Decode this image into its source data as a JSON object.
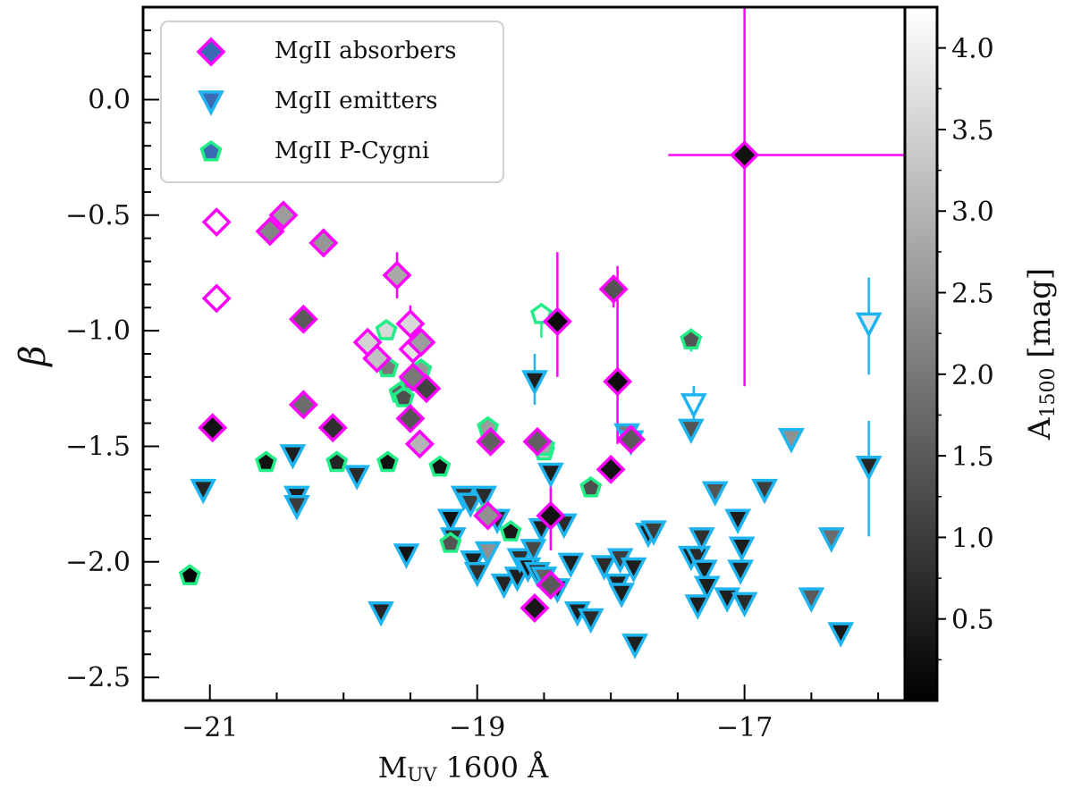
{
  "chart_data": {
    "type": "scatter",
    "title": "",
    "xlabel": "MUV 1600 Å",
    "xlabel_main": "M",
    "xlabel_sub": "UV",
    "xlabel_rest": " 1600 Å",
    "ylabel": "β",
    "xlim": [
      -21.5,
      -15.8
    ],
    "ylim": [
      -2.6,
      0.4
    ],
    "xticks": [
      -21,
      -19,
      -17
    ],
    "xtick_labels": [
      "−21",
      "−19",
      "−17"
    ],
    "yticks": [
      -2.5,
      -2.0,
      -1.5,
      -1.0,
      -0.5,
      0.0
    ],
    "ytick_labels": [
      "−2.5",
      "−2.0",
      "−1.5",
      "−1.0",
      "−0.5",
      "0.0"
    ],
    "colorbar": {
      "label": "A1500 [mag]",
      "label_main": "A",
      "label_sub": "1500",
      "label_rest": " [mag]",
      "range": [
        0.0,
        4.25
      ],
      "ticks": [
        0.5,
        1.0,
        1.5,
        2.0,
        2.5,
        3.0,
        3.5,
        4.0
      ],
      "tick_labels": [
        "0.5",
        "1.0",
        "1.5",
        "2.0",
        "2.5",
        "3.0",
        "3.5",
        "4.0"
      ],
      "colormap": "gray"
    },
    "legend": {
      "position": "top-left",
      "entries": [
        {
          "label": "MgII absorbers",
          "marker": "diamond",
          "edge": "#ff00ff",
          "face": "#3a6ab3"
        },
        {
          "label": "MgII emitters",
          "marker": "triangle-down",
          "edge": "#1eb4f0",
          "face": "#3a6ab3"
        },
        {
          "label": "MgII P-Cygni",
          "marker": "pentagon",
          "edge": "#22ee88",
          "face": "#3a6ab3"
        }
      ]
    },
    "series": [
      {
        "name": "MgII absorbers",
        "marker": "diamond",
        "edge_color": "#ff00ff",
        "points": [
          {
            "x": -20.95,
            "y": -0.53,
            "a": 4.25
          },
          {
            "x": -20.95,
            "y": -0.86,
            "a": 4.25
          },
          {
            "x": -20.98,
            "y": -1.42,
            "a": 0.3
          },
          {
            "x": -20.55,
            "y": -0.57,
            "a": 2.2
          },
          {
            "x": -20.45,
            "y": -0.5,
            "a": 2.6
          },
          {
            "x": -20.15,
            "y": -0.62,
            "a": 2.5
          },
          {
            "x": -20.3,
            "y": -0.95,
            "a": 1.5
          },
          {
            "x": -20.3,
            "y": -1.32,
            "a": 1.8
          },
          {
            "x": -20.08,
            "y": -1.42,
            "a": 0.8
          },
          {
            "x": -19.82,
            "y": -1.05,
            "a": 3.5
          },
          {
            "x": -19.75,
            "y": -1.12,
            "a": 3.2
          },
          {
            "x": -19.6,
            "y": -0.76,
            "a": 2.8,
            "yerr": [
              0.1,
              0.1
            ]
          },
          {
            "x": -19.5,
            "y": -0.97,
            "a": 3.6,
            "yerr": [
              0.05,
              0.08
            ]
          },
          {
            "x": -19.48,
            "y": -1.08,
            "a": 3.8
          },
          {
            "x": -19.42,
            "y": -1.05,
            "a": 2.6
          },
          {
            "x": -19.48,
            "y": -1.2,
            "a": 2.0
          },
          {
            "x": -19.5,
            "y": -1.38,
            "a": 1.4
          },
          {
            "x": -19.38,
            "y": -1.25,
            "a": 1.1
          },
          {
            "x": -19.43,
            "y": -1.49,
            "a": 3.0
          },
          {
            "x": -18.55,
            "y": -1.48,
            "a": 1.6
          },
          {
            "x": -18.9,
            "y": -1.48,
            "a": 1.6
          },
          {
            "x": -18.92,
            "y": -1.8,
            "a": 2.4
          },
          {
            "x": -18.57,
            "y": -2.2,
            "a": 0.4
          },
          {
            "x": -18.45,
            "y": -2.1,
            "a": 1.5
          },
          {
            "x": -18.45,
            "y": -1.8,
            "a": 0.3,
            "yerr": [
              0.15,
              0.17
            ]
          },
          {
            "x": -18.4,
            "y": -0.96,
            "a": 0.2,
            "yerr": [
              0.24,
              0.3
            ]
          },
          {
            "x": -17.98,
            "y": -0.82,
            "a": 1.4,
            "yerr": [
              0.08,
              0.06
            ]
          },
          {
            "x": -17.95,
            "y": -1.22,
            "a": 0.2,
            "yerr": [
              0.27,
              0.5
            ]
          },
          {
            "x": -18.0,
            "y": -1.6,
            "a": 0.3
          },
          {
            "x": -17.85,
            "y": -1.47,
            "a": 1.5
          },
          {
            "x": -17.0,
            "y": -0.24,
            "a": 0.3,
            "xerr": [
              0.57,
              1.3
            ],
            "yerr": [
              1.0,
              0.64
            ]
          }
        ]
      },
      {
        "name": "MgII emitters",
        "marker": "triangle-down",
        "edge_color": "#1eb4f0",
        "points": [
          {
            "x": -21.05,
            "y": -1.69,
            "a": 0.6
          },
          {
            "x": -20.38,
            "y": -1.54,
            "a": 0.5
          },
          {
            "x": -20.35,
            "y": -1.72,
            "a": 0.5
          },
          {
            "x": -20.35,
            "y": -1.76,
            "a": 1.0
          },
          {
            "x": -19.9,
            "y": -1.63,
            "a": 0.7
          },
          {
            "x": -19.72,
            "y": -2.22,
            "a": 0.6
          },
          {
            "x": -19.53,
            "y": -1.97,
            "a": 0.3
          },
          {
            "x": -19.2,
            "y": -1.82,
            "a": 0.3
          },
          {
            "x": -19.18,
            "y": -1.9,
            "a": 0.8
          },
          {
            "x": -19.1,
            "y": -1.72,
            "a": 0.8
          },
          {
            "x": -19.05,
            "y": -1.75,
            "a": 1.0
          },
          {
            "x": -19.03,
            "y": -2.0,
            "a": 0.5
          },
          {
            "x": -19.0,
            "y": -2.05,
            "a": 0.8
          },
          {
            "x": -18.95,
            "y": -1.72,
            "a": 0.7
          },
          {
            "x": -18.92,
            "y": -1.96,
            "a": 2.4
          },
          {
            "x": -18.85,
            "y": -1.82,
            "a": 0.7
          },
          {
            "x": -18.8,
            "y": -2.1,
            "a": 0.6
          },
          {
            "x": -18.7,
            "y": -2.07,
            "a": 0.5
          },
          {
            "x": -18.68,
            "y": -1.99,
            "a": 0.8
          },
          {
            "x": -18.62,
            "y": -2.03,
            "a": 0.5
          },
          {
            "x": -18.58,
            "y": -1.95,
            "a": 1.2
          },
          {
            "x": -18.55,
            "y": -2.05,
            "a": 0.7
          },
          {
            "x": -18.5,
            "y": -2.07,
            "a": 1.6
          },
          {
            "x": -18.52,
            "y": -1.86,
            "a": 0.5
          },
          {
            "x": -18.45,
            "y": -1.62,
            "a": 0.5
          },
          {
            "x": -18.57,
            "y": -1.22,
            "a": 0.5,
            "yerr": [
              0.1,
              0.12
            ]
          },
          {
            "x": -18.4,
            "y": -2.12,
            "a": 0.6
          },
          {
            "x": -18.35,
            "y": -1.84,
            "a": 0.7
          },
          {
            "x": -18.3,
            "y": -2.01,
            "a": 0.5
          },
          {
            "x": -18.25,
            "y": -2.22,
            "a": 0.5
          },
          {
            "x": -18.15,
            "y": -2.25,
            "a": 0.7
          },
          {
            "x": -18.05,
            "y": -2.02,
            "a": 0.7
          },
          {
            "x": -17.93,
            "y": -1.99,
            "a": 1.0
          },
          {
            "x": -17.95,
            "y": -2.1,
            "a": 0.5
          },
          {
            "x": -17.92,
            "y": -2.14,
            "a": 0.5
          },
          {
            "x": -17.88,
            "y": -1.45,
            "a": 2.0
          },
          {
            "x": -17.85,
            "y": -1.48,
            "a": 0.5
          },
          {
            "x": -17.83,
            "y": -2.03,
            "a": 0.5
          },
          {
            "x": -17.82,
            "y": -2.36,
            "a": 0.5
          },
          {
            "x": -17.72,
            "y": -1.88,
            "a": 0.5
          },
          {
            "x": -17.68,
            "y": -1.87,
            "a": 1.0
          },
          {
            "x": -17.4,
            "y": -1.98,
            "a": 0.5
          },
          {
            "x": -17.38,
            "y": -1.32,
            "a": 4.25,
            "yerr": [
              0.08,
              0.08
            ]
          },
          {
            "x": -17.4,
            "y": -1.43,
            "a": 1.4
          },
          {
            "x": -17.35,
            "y": -1.98,
            "a": 0.7
          },
          {
            "x": -17.32,
            "y": -1.9,
            "a": 0.8
          },
          {
            "x": -17.3,
            "y": -2.04,
            "a": 0.5
          },
          {
            "x": -17.28,
            "y": -2.11,
            "a": 0.5
          },
          {
            "x": -17.35,
            "y": -2.19,
            "a": 0.5
          },
          {
            "x": -17.22,
            "y": -1.7,
            "a": 1.4
          },
          {
            "x": -17.13,
            "y": -2.16,
            "a": 0.5
          },
          {
            "x": -17.05,
            "y": -1.82,
            "a": 0.5
          },
          {
            "x": -17.02,
            "y": -1.94,
            "a": 0.5
          },
          {
            "x": -17.03,
            "y": -2.04,
            "a": 0.6
          },
          {
            "x": -17.0,
            "y": -2.18,
            "a": 0.7
          },
          {
            "x": -16.85,
            "y": -1.69,
            "a": 1.0
          },
          {
            "x": -16.65,
            "y": -1.47,
            "a": 2.4
          },
          {
            "x": -16.5,
            "y": -2.16,
            "a": 1.5
          },
          {
            "x": -16.35,
            "y": -1.9,
            "a": 1.8
          },
          {
            "x": -16.28,
            "y": -2.31,
            "a": 0.4
          },
          {
            "x": -16.07,
            "y": -0.97,
            "a": 3.9,
            "yerr": [
              0.22,
              0.2
            ]
          },
          {
            "x": -16.07,
            "y": -1.59,
            "a": 0.6,
            "yerr": [
              0.3,
              0.2
            ]
          }
        ]
      },
      {
        "name": "MgII P-Cygni",
        "marker": "pentagon",
        "edge_color": "#22ee88",
        "points": [
          {
            "x": -21.15,
            "y": -2.06,
            "a": 0.1
          },
          {
            "x": -20.58,
            "y": -1.57,
            "a": 0.3
          },
          {
            "x": -20.05,
            "y": -1.57,
            "a": 0.6
          },
          {
            "x": -19.68,
            "y": -1.0,
            "a": 3.6
          },
          {
            "x": -19.67,
            "y": -1.16,
            "a": 2.0
          },
          {
            "x": -19.67,
            "y": -1.57,
            "a": 0.3
          },
          {
            "x": -19.58,
            "y": -1.27,
            "a": 1.6
          },
          {
            "x": -19.55,
            "y": -1.29,
            "a": 1.3
          },
          {
            "x": -19.5,
            "y": -1.22,
            "a": 2.0
          },
          {
            "x": -19.42,
            "y": -1.17,
            "a": 2.5
          },
          {
            "x": -19.28,
            "y": -1.59,
            "a": 0.3
          },
          {
            "x": -19.2,
            "y": -1.92,
            "a": 1.4
          },
          {
            "x": -18.92,
            "y": -1.42,
            "a": 2.6
          },
          {
            "x": -18.93,
            "y": -1.79,
            "a": 0.3
          },
          {
            "x": -18.75,
            "y": -1.87,
            "a": 0.4
          },
          {
            "x": -18.52,
            "y": -0.93,
            "a": 4.25,
            "yerr": [
              0.1,
              0.05
            ]
          },
          {
            "x": -18.5,
            "y": -1.52,
            "a": 3.5
          },
          {
            "x": -18.5,
            "y": -1.5,
            "a": 2.8
          },
          {
            "x": -18.15,
            "y": -1.68,
            "a": 1.3
          },
          {
            "x": -17.4,
            "y": -1.04,
            "a": 1.4,
            "yerr": [
              0.05,
              0.05
            ]
          }
        ]
      }
    ]
  }
}
